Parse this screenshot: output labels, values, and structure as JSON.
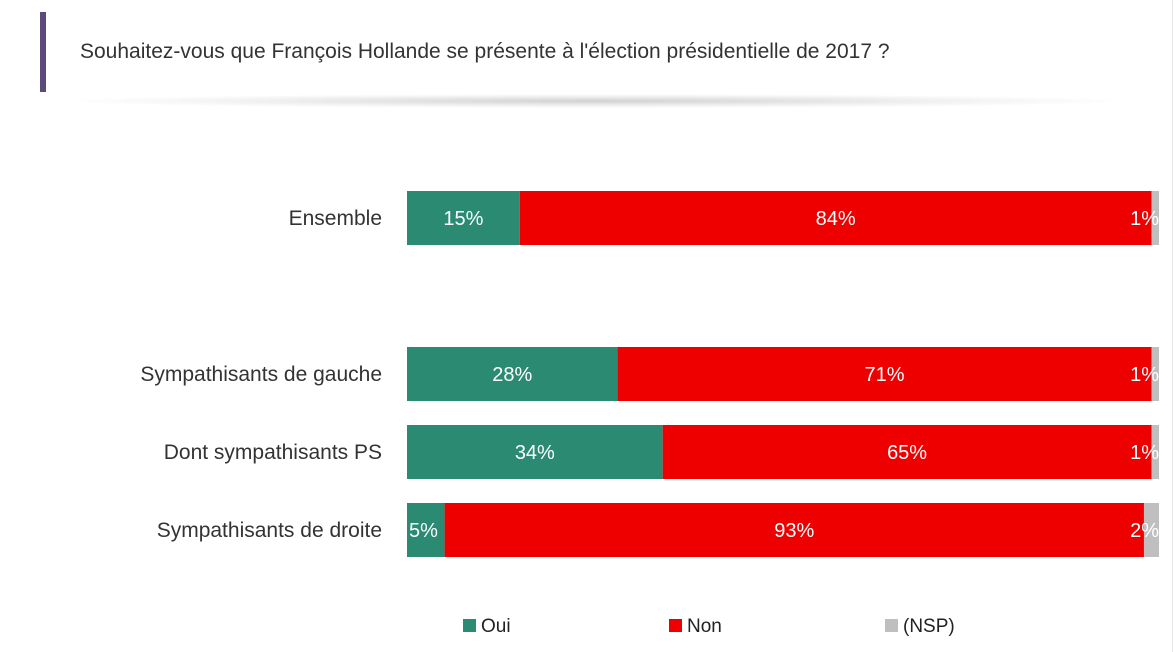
{
  "header": {
    "title": "Souhaitez-vous que François Hollande se présente à l'élection présidentielle de 2017 ?",
    "accent_color": "#5b4a7a"
  },
  "chart_data": {
    "type": "bar",
    "orientation": "horizontal",
    "stacked": true,
    "categories": [
      "Ensemble",
      "Sympathisants de gauche",
      "Dont sympathisants PS",
      "Sympathisants de droite"
    ],
    "series": [
      {
        "name": "Oui",
        "color": "#2a8a72",
        "values": [
          15,
          28,
          34,
          5
        ],
        "labels": [
          "15%",
          "28%",
          "34%",
          "5%"
        ]
      },
      {
        "name": "Non",
        "color": "#ee0000",
        "values": [
          84,
          71,
          65,
          93
        ],
        "labels": [
          "84%",
          "71%",
          "65%",
          "93%"
        ]
      },
      {
        "name": "(NSP)",
        "color": "#bfbfbf",
        "values": [
          1,
          1,
          1,
          2
        ],
        "labels": [
          "1%",
          "1%",
          "1%",
          "2%"
        ]
      }
    ],
    "xlim": [
      0,
      100
    ],
    "grid": false,
    "legend_position": "bottom"
  }
}
